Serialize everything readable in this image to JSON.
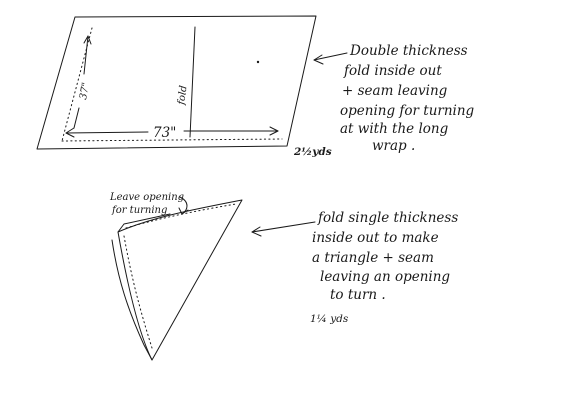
{
  "top_panel": {
    "width_label": "73\"",
    "height_label": "37\"",
    "fold_label": "fold",
    "yardage": "2½yds",
    "note_lines": [
      "Double thickness",
      "fold inside out",
      "+ seam leaving",
      "opening for turning",
      "at with the long",
      "wrap ."
    ]
  },
  "bottom_panel": {
    "leave_opening_lines": [
      "Leave opening",
      "for turning"
    ],
    "yardage": "1¼ yds",
    "note_lines": [
      "fold single thickness",
      "inside out to make",
      "a triangle + seam",
      "leaving an opening",
      "to turn ."
    ]
  }
}
